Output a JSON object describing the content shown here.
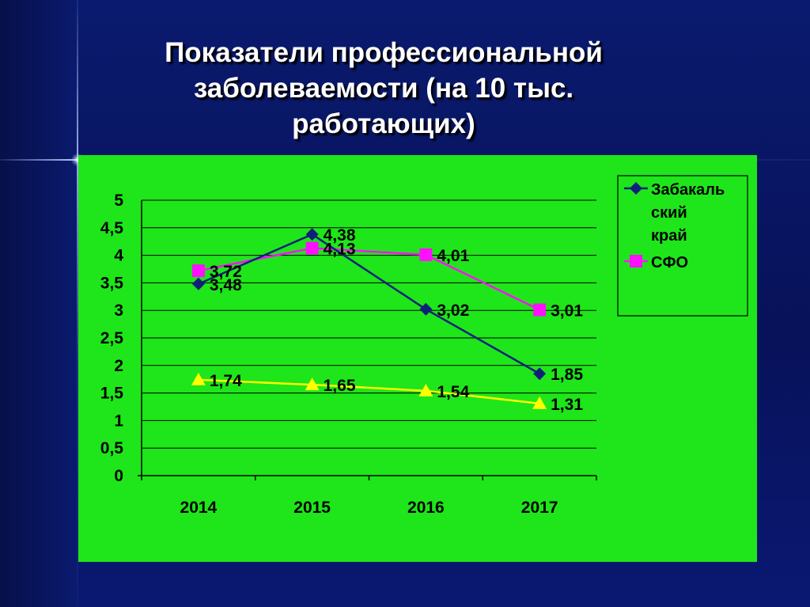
{
  "slide": {
    "title_lines": [
      "Показатели профессиональной",
      "заболеваемости (на 10 тыс.",
      "работающих)"
    ]
  },
  "colors": {
    "background": "#0a1a6e",
    "chart_background": "#1ee61a",
    "title": "#ffffff",
    "series_zabaikalsky": "#10207a",
    "series_sfo": "#ff10ff",
    "series_third": "#ffff00",
    "gridline": "#000000"
  },
  "chart_data": {
    "type": "line",
    "title": "",
    "xlabel": "",
    "ylabel": "",
    "categories": [
      "2014",
      "2015",
      "2016",
      "2017"
    ],
    "ylim": [
      0,
      5
    ],
    "ytick_labels": [
      "0",
      "0,5",
      "1",
      "1,5",
      "2",
      "2,5",
      "3",
      "3,5",
      "4",
      "4,5",
      "5"
    ],
    "grid": true,
    "legend_position": "top-right",
    "legend": [
      {
        "label_lines": [
          "Забакаль",
          "ский",
          "край"
        ],
        "marker": "diamond"
      },
      {
        "label_lines": [
          "СФО"
        ],
        "marker": "square"
      }
    ],
    "series": [
      {
        "name": "Забакальский край",
        "marker": "diamond",
        "values": [
          3.48,
          4.38,
          3.02,
          1.85
        ],
        "labels": [
          "3,48",
          "4,38",
          "3,02",
          "1,85"
        ]
      },
      {
        "name": "СФО",
        "marker": "square",
        "values": [
          3.72,
          4.13,
          4.01,
          3.01
        ],
        "labels": [
          "3,72",
          "4,13",
          "4,01",
          "3,01"
        ]
      },
      {
        "marker": "triangle",
        "values": [
          1.74,
          1.65,
          1.54,
          1.31
        ],
        "labels": [
          "1,74",
          "1,65",
          "1,54",
          "1,31"
        ]
      }
    ]
  }
}
